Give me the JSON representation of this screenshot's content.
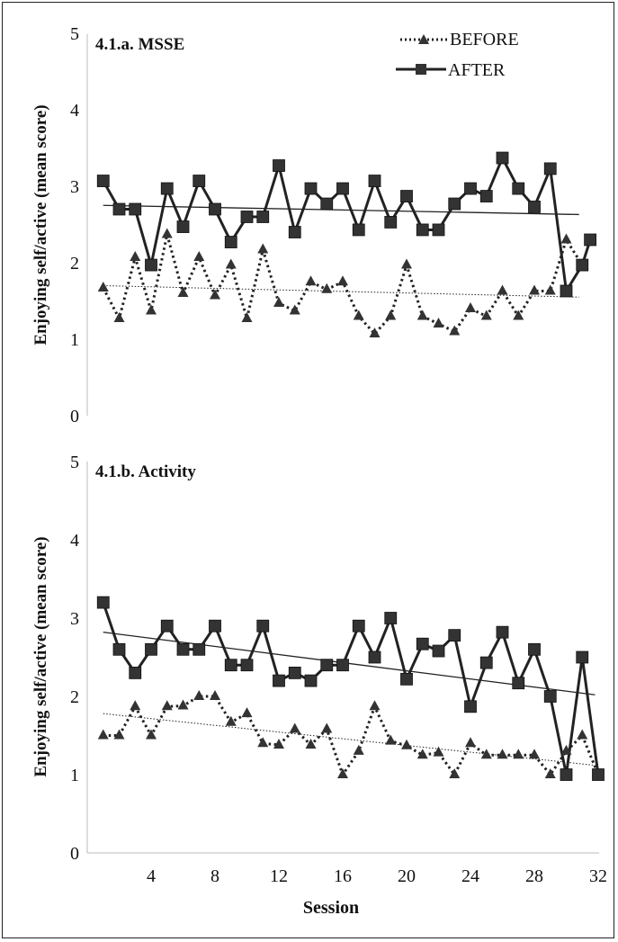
{
  "chart_data": {
    "type": "line",
    "xlabel": "Session",
    "x_ticks": [
      4,
      8,
      12,
      16,
      20,
      24,
      28,
      32
    ],
    "xlim": [
      0,
      32
    ],
    "legend": {
      "placement": "top-right",
      "entries": [
        {
          "name": "BEFORE",
          "style": "dotted",
          "marker": "triangle"
        },
        {
          "name": "AFTER",
          "style": "solid",
          "marker": "square"
        }
      ]
    },
    "colors": {
      "line": "#222222",
      "marker": "#333333"
    },
    "panels": [
      {
        "title": "4.1.a. MSSE",
        "ylabel": "Enjoying self/active (mean score)",
        "ylim": [
          0,
          5
        ],
        "y_ticks": [
          0,
          1,
          2,
          3,
          4,
          5
        ],
        "series": [
          {
            "name": "BEFORE",
            "x": [
              1,
              2,
              3,
              4,
              5,
              6,
              7,
              8,
              9,
              10,
              11,
              12,
              13,
              14,
              15,
              16,
              17,
              18,
              19,
              20,
              21,
              22,
              23,
              24,
              25,
              26,
              27,
              28,
              29,
              30,
              31
            ],
            "values": [
              1.67,
              1.27,
              2.07,
              1.37,
              2.37,
              1.6,
              2.07,
              1.57,
              1.97,
              1.27,
              2.17,
              1.47,
              1.37,
              1.75,
              1.65,
              1.75,
              1.3,
              1.07,
              1.3,
              1.97,
              1.3,
              1.2,
              1.1,
              1.4,
              1.3,
              1.63,
              1.3,
              1.63,
              1.63,
              2.3,
              1.97
            ],
            "trend": [
              1.7,
              1.55
            ]
          },
          {
            "name": "AFTER",
            "x": [
              1,
              2,
              3,
              4,
              5,
              6,
              7,
              8,
              9,
              10,
              11,
              12,
              13,
              14,
              15,
              16,
              17,
              18,
              19,
              20,
              21,
              22,
              23,
              24,
              25,
              26,
              27,
              28,
              29,
              30,
              31
            ],
            "values": [
              3.07,
              2.7,
              2.7,
              1.97,
              2.97,
              2.47,
              3.07,
              2.7,
              2.27,
              2.6,
              2.6,
              3.27,
              2.4,
              2.97,
              2.77,
              2.97,
              2.43,
              3.07,
              2.53,
              2.87,
              2.43,
              2.43,
              2.77,
              2.97,
              2.87,
              3.37,
              2.97,
              2.73,
              3.23,
              1.63,
              1.97
            ],
            "extra_point": [
              31.5,
              2.3
            ],
            "trend": [
              2.75,
              2.63
            ]
          }
        ]
      },
      {
        "title": "4.1.b. Activity",
        "ylabel": "Enjoying self/active (mean score)",
        "ylim": [
          0,
          5
        ],
        "y_ticks": [
          0,
          1,
          2,
          3,
          4,
          5
        ],
        "series": [
          {
            "name": "BEFORE",
            "x": [
              1,
              2,
              3,
              4,
              5,
              6,
              7,
              8,
              9,
              10,
              11,
              12,
              13,
              14,
              15,
              16,
              17,
              18,
              19,
              20,
              21,
              22,
              23,
              24,
              25,
              26,
              27,
              28,
              29,
              30,
              31,
              32
            ],
            "values": [
              1.5,
              1.5,
              1.87,
              1.5,
              1.87,
              1.88,
              2.0,
              2.0,
              1.67,
              1.78,
              1.4,
              1.38,
              1.58,
              1.38,
              1.58,
              1.0,
              1.3,
              1.87,
              1.43,
              1.37,
              1.25,
              1.28,
              1.0,
              1.4,
              1.25,
              1.25,
              1.25,
              1.25,
              1.0,
              1.3,
              1.5,
              1.0
            ],
            "trend": [
              1.78,
              1.12
            ]
          },
          {
            "name": "AFTER",
            "x": [
              1,
              2,
              3,
              4,
              5,
              6,
              7,
              8,
              9,
              10,
              11,
              12,
              13,
              14,
              15,
              16,
              17,
              18,
              19,
              20,
              21,
              22,
              23,
              24,
              25,
              26,
              27,
              28,
              29,
              30,
              31,
              32
            ],
            "values": [
              3.2,
              2.6,
              2.3,
              2.6,
              2.9,
              2.6,
              2.6,
              2.9,
              2.4,
              2.4,
              2.9,
              2.2,
              2.3,
              2.2,
              2.4,
              2.4,
              2.9,
              2.5,
              3.0,
              2.22,
              2.67,
              2.58,
              2.78,
              1.87,
              2.43,
              2.82,
              2.17,
              2.6,
              2.0,
              1.0,
              2.5,
              1.0
            ],
            "trend": [
              2.82,
              2.02
            ]
          }
        ]
      }
    ]
  }
}
